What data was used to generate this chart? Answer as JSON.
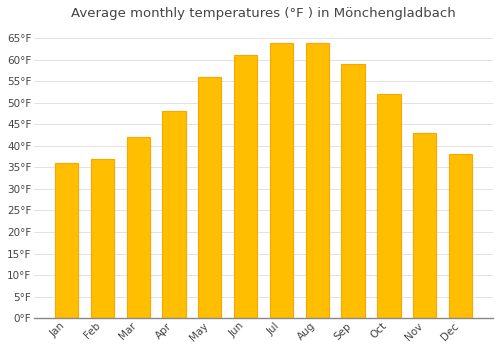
{
  "title": "Average monthly temperatures (°F ) in Mönchengladbach",
  "months": [
    "Jan",
    "Feb",
    "Mar",
    "Apr",
    "May",
    "Jun",
    "Jul",
    "Aug",
    "Sep",
    "Oct",
    "Nov",
    "Dec"
  ],
  "values": [
    36,
    37,
    42,
    48,
    56,
    61,
    64,
    64,
    59,
    52,
    43,
    38
  ],
  "bar_color": "#FFBF00",
  "bar_edge_color": "#FFA500",
  "background_color": "#FFFFFF",
  "grid_color": "#DDDDDD",
  "text_color": "#444444",
  "ylim": [
    0,
    68
  ],
  "yticks": [
    0,
    5,
    10,
    15,
    20,
    25,
    30,
    35,
    40,
    45,
    50,
    55,
    60,
    65
  ],
  "title_fontsize": 9.5,
  "tick_fontsize": 7.5,
  "bar_width": 0.65
}
